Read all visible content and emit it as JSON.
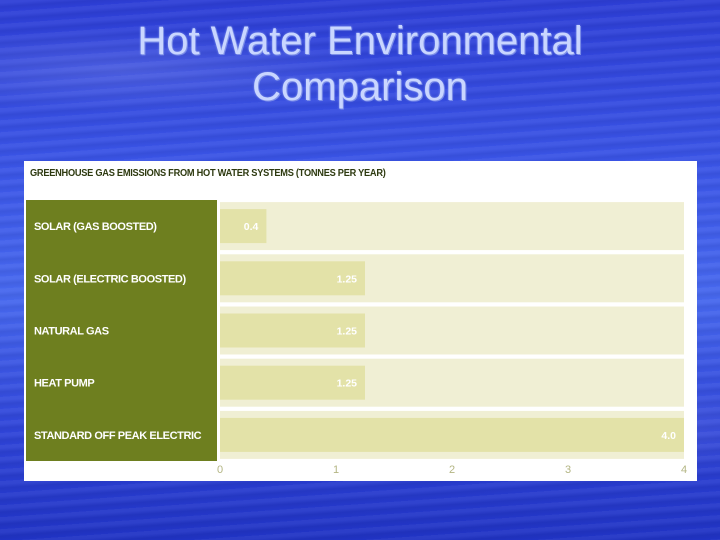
{
  "slide": {
    "title_line1": "Hot Water Environmental",
    "title_line2": "Comparison"
  },
  "colors": {
    "label_panel": "#6e7f1f",
    "track": "#f0efd4",
    "bar": "#e3e2a8",
    "bar_text": "#ffffff",
    "tick_text": "#b3b583",
    "heading_text": "#2e3a10"
  },
  "chart_data": {
    "type": "bar",
    "orientation": "horizontal",
    "title": "GREENHOUSE GAS EMISSIONS FROM HOT WATER SYSTEMS (TONNES PER YEAR)",
    "categories": [
      "SOLAR (GAS BOOSTED)",
      "SOLAR (ELECTRIC BOOSTED)",
      "NATURAL GAS",
      "HEAT PUMP",
      "STANDARD OFF PEAK ELECTRIC"
    ],
    "values": [
      0.4,
      1.25,
      1.25,
      1.25,
      4.0
    ],
    "value_labels": [
      "0.4",
      "1.25",
      "1.25",
      "1.25",
      "4.0"
    ],
    "xlim": [
      0,
      4
    ],
    "xticks": [
      "0",
      "1",
      "2",
      "3",
      "4"
    ],
    "xlabel": "",
    "ylabel": "",
    "grid": false,
    "legend": "none"
  }
}
